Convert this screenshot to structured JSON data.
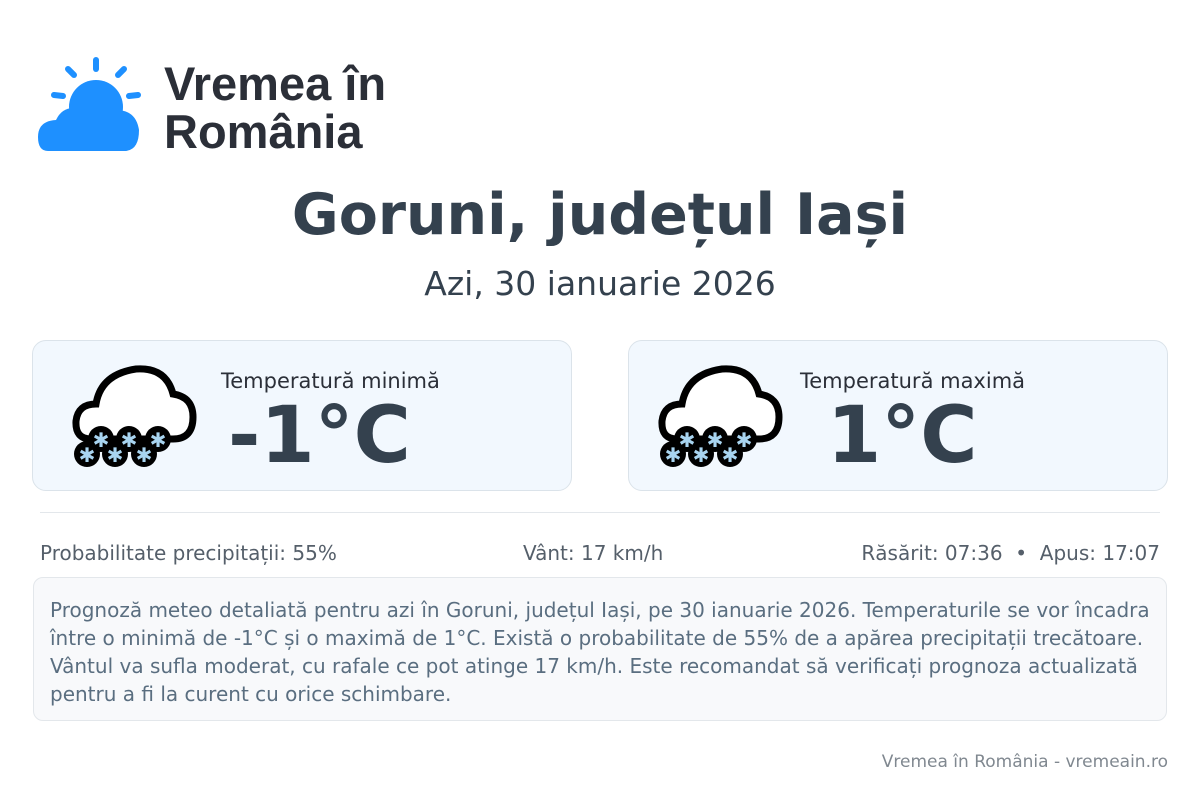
{
  "brand": {
    "name": "Vremea în România",
    "line1": "Vremea în",
    "line2": "România",
    "color": "#1e90ff"
  },
  "header": {
    "title": "Goruni, județul Iași",
    "date": "Azi, 30 ianuarie 2026"
  },
  "cards": [
    {
      "label": "Temperatură minimă",
      "value": "-1°C",
      "icon": "snow-cloud-icon"
    },
    {
      "label": "Temperatură maximă",
      "value": "1°C",
      "icon": "snow-cloud-icon"
    }
  ],
  "stats": {
    "precip": "Probabilitate precipitații: 55%",
    "wind": "Vânt: 17 km/h",
    "sun": "Răsărit: 07:36  •  Apus: 17:07"
  },
  "description": "Prognoză meteo detaliată pentru azi în Goruni, județul Iași, pe 30 ianuarie 2026. Temperaturile se vor încadra între o minimă de -1°C și o maximă de 1°C. Există o probabilitate de 55% de a apărea precipitații trecătoare. Vântul va sufla moderat, cu rafale ce pot atinge 17 km/h. Este recomandat să verificați prognoza actualizată pentru a fi la curent cu orice schimbare.",
  "footer": "Vremea în România - vremeain.ro"
}
